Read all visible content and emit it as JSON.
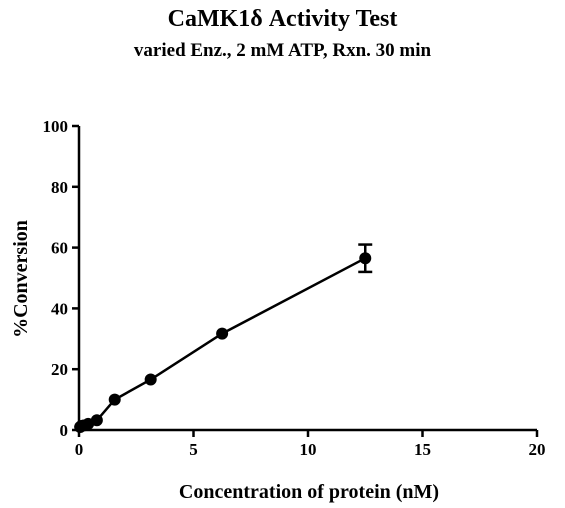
{
  "chart_data": {
    "type": "scatter",
    "title": "CaMK1δ Activity Test",
    "subtitle": "varied Enz., 2 mM ATP, Rxn. 30 min",
    "xlabel": "Concentration of protein (nM)",
    "ylabel": "%Conversion",
    "xlim": [
      0,
      20
    ],
    "ylim": [
      0,
      100
    ],
    "xticks": [
      0,
      5,
      10,
      15,
      20
    ],
    "yticks": [
      0,
      20,
      40,
      60,
      80,
      100
    ],
    "grid": false,
    "connected_line": true,
    "series": [
      {
        "points": [
          {
            "x": 0.05,
            "y": 1.0,
            "err": 0
          },
          {
            "x": 0.1,
            "y": 1.3,
            "err": 0
          },
          {
            "x": 0.2,
            "y": 1.5,
            "err": 0
          },
          {
            "x": 0.4,
            "y": 2.0,
            "err": 0
          },
          {
            "x": 0.78,
            "y": 3.2,
            "err": 0
          },
          {
            "x": 1.56,
            "y": 10.0,
            "err": 0
          },
          {
            "x": 3.13,
            "y": 16.6,
            "err": 0
          },
          {
            "x": 6.25,
            "y": 31.7,
            "err": 0
          },
          {
            "x": 12.5,
            "y": 56.5,
            "err": 4.5
          }
        ]
      }
    ]
  }
}
